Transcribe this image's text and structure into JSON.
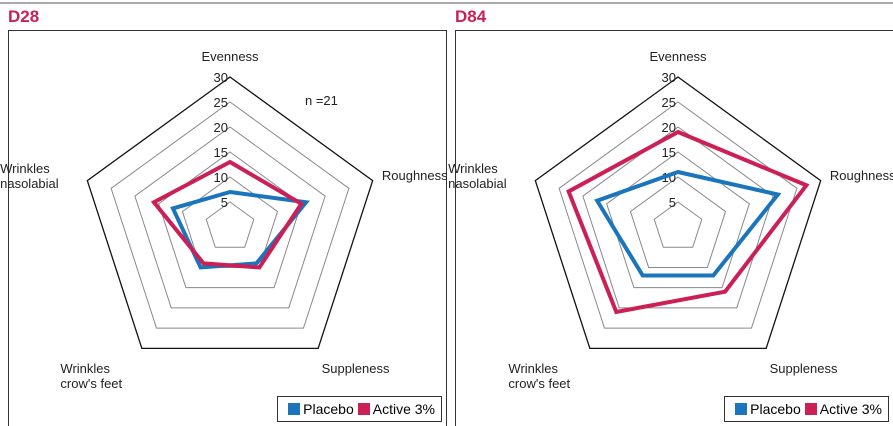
{
  "chart_data": [
    {
      "type": "radar",
      "title": "D28",
      "categories": [
        "Evenness",
        "Roughness",
        "Suppleness",
        "Wrinkles crow's feet",
        "Wrinkles nasolabial"
      ],
      "series": [
        {
          "name": "Placebo",
          "color": "#1b75bc",
          "values": [
            7,
            16,
            9,
            10,
            12
          ]
        },
        {
          "name": "Active 3%",
          "color": "#cc1f55",
          "values": [
            13,
            15,
            10,
            9,
            16
          ]
        }
      ],
      "rlim": [
        0,
        30
      ],
      "rticks": [
        5,
        10,
        15,
        20,
        25,
        30
      ],
      "annotation": "n =21",
      "legend": "lower right"
    },
    {
      "type": "radar",
      "title": "D84",
      "categories": [
        "Evenness",
        "Roughness",
        "Suppleness",
        "Wrinkles crow's feet",
        "Wrinkles nasolabial"
      ],
      "series": [
        {
          "name": "Placebo",
          "color": "#1b75bc",
          "values": [
            11,
            21,
            12,
            12,
            17
          ]
        },
        {
          "name": "Active 3%",
          "color": "#cc1f55",
          "values": [
            19,
            27,
            16,
            21,
            23
          ]
        }
      ],
      "rlim": [
        0,
        30
      ],
      "rticks": [
        5,
        10,
        15,
        20,
        25,
        30
      ],
      "legend": "lower right"
    }
  ]
}
